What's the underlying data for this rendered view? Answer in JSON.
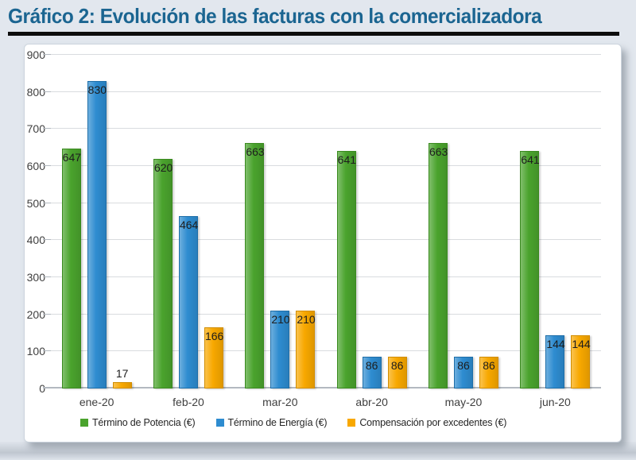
{
  "header": {
    "title": "Gráfico 2: Evolución de las facturas con la comercializadora",
    "accent_color": "#1b6591"
  },
  "chart_data": {
    "type": "bar",
    "title": "Gráfico 2: Evolución de las facturas con la comercializadora",
    "categories": [
      "ene-20",
      "feb-20",
      "mar-20",
      "abr-20",
      "may-20",
      "jun-20"
    ],
    "series": [
      {
        "name": "Término de Potencia (€)",
        "color": "#4aa32d",
        "border_color": "#3a8a1f",
        "values": [
          647,
          620,
          663,
          641,
          663,
          641
        ]
      },
      {
        "name": "Término de Energía (€)",
        "color": "#2e8cd0",
        "border_color": "#1e6ea8",
        "values": [
          830,
          464,
          210,
          86,
          86,
          144
        ]
      },
      {
        "name": "Compensación por excedentes (€)",
        "color": "#f8a800",
        "border_color": "#d18d00",
        "values": [
          17,
          166,
          210,
          86,
          86,
          144
        ]
      }
    ],
    "xlabel": "",
    "ylabel": "",
    "ylim": [
      0,
      900
    ],
    "yticks": [
      0,
      100,
      200,
      300,
      400,
      500,
      600,
      700,
      800,
      900
    ],
    "grid": true,
    "legend_position": "bottom"
  }
}
